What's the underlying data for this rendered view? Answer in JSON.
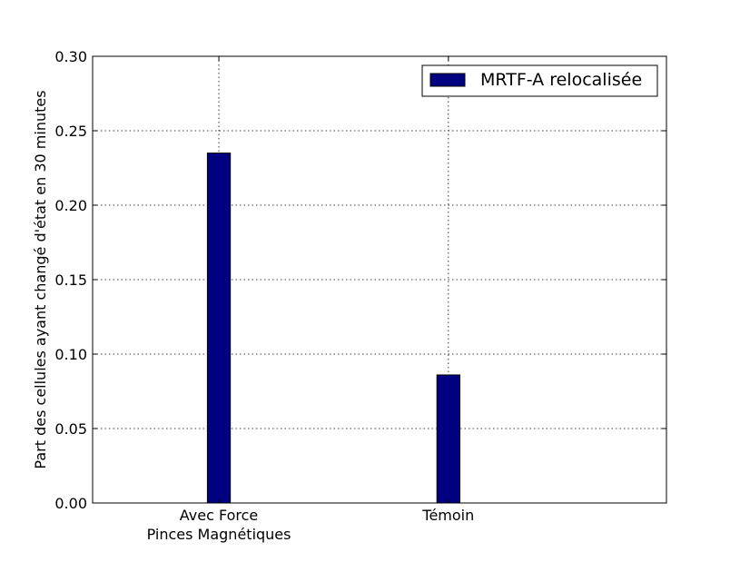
{
  "chart_data": {
    "type": "bar",
    "categories": [
      "Avec Force\nPinces Magnétiques",
      "Témoin"
    ],
    "series": [
      {
        "name": "MRTF-A relocalisée",
        "values": [
          0.235,
          0.086
        ],
        "color": "#000080"
      }
    ],
    "title": "",
    "xlabel": "",
    "ylabel": "Part des cellules ayant changé d'état en 30 minutes",
    "ylim": [
      0,
      0.3
    ],
    "yticks": [
      "0.00",
      "0.05",
      "0.10",
      "0.15",
      "0.20",
      "0.25",
      "0.30"
    ],
    "grid": true,
    "grid_style": "dotted",
    "legend_position": "top-right"
  }
}
